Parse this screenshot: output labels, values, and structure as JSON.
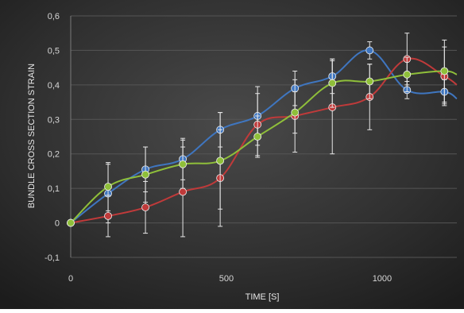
{
  "chart_data": {
    "type": "line",
    "title": "",
    "xlabel": "TIME [S]",
    "ylabel": "BUNDLE CROSS SECTION STRAIN",
    "xlim": [
      0,
      1240
    ],
    "ylim": [
      -0.1,
      0.6
    ],
    "x_ticks": [
      0,
      500,
      1000
    ],
    "x_tick_labels": [
      "0",
      "500",
      "1000"
    ],
    "y_ticks": [
      -0.1,
      0,
      0.1,
      0.2,
      0.3,
      0.4,
      0.5,
      0.6
    ],
    "y_tick_labels": [
      "-0,1",
      "0",
      "0,1",
      "0,2",
      "0,3",
      "0,4",
      "0,5",
      "0,6"
    ],
    "grid": "horizontal",
    "legend": "none",
    "background": "#2e2e2e",
    "series": [
      {
        "color": "#3f76c0",
        "x": [
          0,
          120,
          240,
          360,
          480,
          600,
          720,
          840,
          960,
          1080,
          1200
        ],
        "values": [
          0,
          0.085,
          0.155,
          0.185,
          0.27,
          0.31,
          0.39,
          0.425,
          0.5,
          0.385,
          0.38
        ],
        "error": [
          0,
          0.085,
          0.065,
          0.06,
          0.05,
          0.085,
          0.05,
          0.05,
          0.025,
          0.025,
          0.035
        ],
        "trend_end": 0.36
      },
      {
        "color": "#c03a3a",
        "x": [
          0,
          120,
          240,
          360,
          480,
          600,
          720,
          840,
          960,
          1080,
          1200
        ],
        "values": [
          0,
          0.02,
          0.045,
          0.09,
          0.13,
          0.285,
          0.31,
          0.335,
          0.365,
          0.475,
          0.425
        ],
        "error": [
          0,
          0.06,
          0.075,
          0.13,
          0.14,
          0.09,
          0.105,
          0.135,
          0.095,
          0.075,
          0.085
        ],
        "trend_end": 0.4
      },
      {
        "color": "#8fbf3a",
        "x": [
          0,
          120,
          240,
          360,
          480,
          600,
          720,
          840,
          960,
          1080,
          1200
        ],
        "values": [
          0,
          0.105,
          0.14,
          0.17,
          0.18,
          0.25,
          0.32,
          0.405,
          0.41,
          0.43,
          0.44
        ],
        "error": [
          0,
          0.07,
          0.08,
          0.07,
          0.14,
          0.06,
          0.06,
          0.07,
          0.05,
          0.05,
          0.09
        ],
        "trend_end": 0.43
      }
    ]
  }
}
